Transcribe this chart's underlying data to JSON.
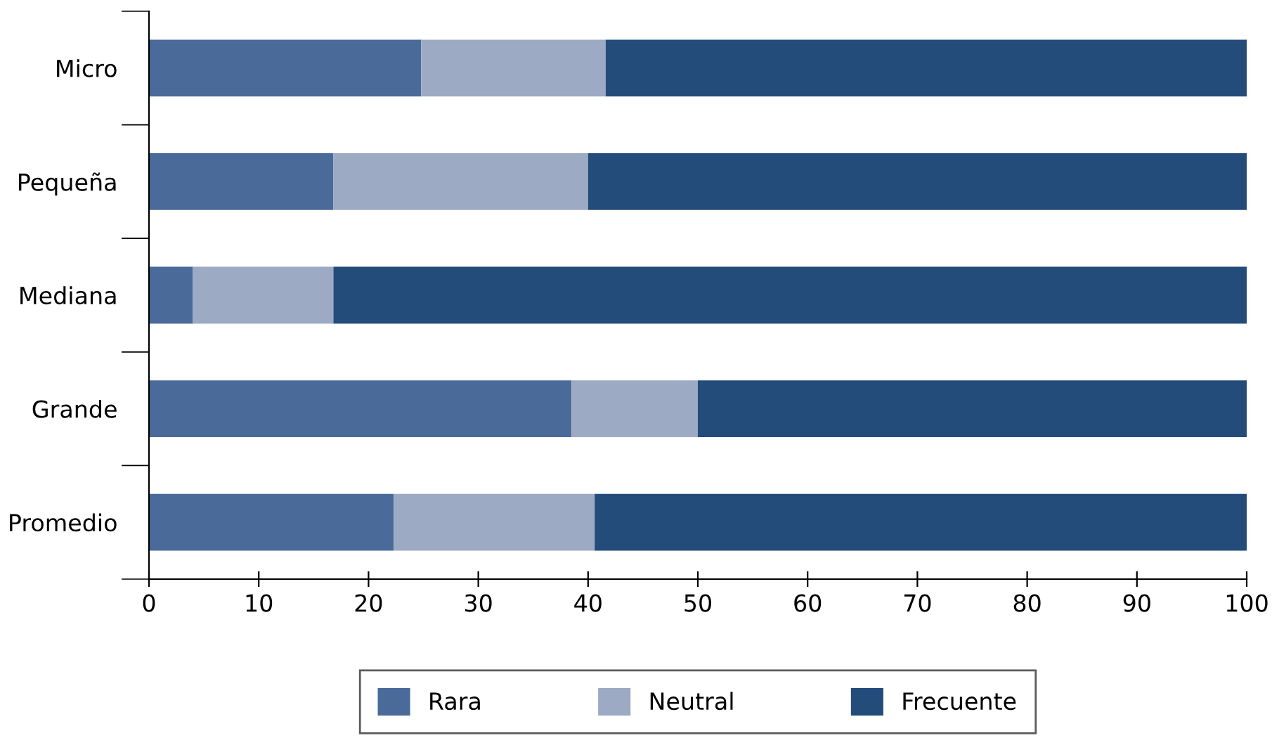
{
  "chart_data": {
    "type": "bar",
    "orientation": "horizontal",
    "stacked": true,
    "categories": [
      "Micro",
      "Pequeña",
      "Mediana",
      "Grande",
      "Promedio"
    ],
    "series": [
      {
        "name": "Rara",
        "color": "#4a6a9a",
        "values": [
          24.8,
          16.8,
          4.0,
          38.5,
          22.3
        ]
      },
      {
        "name": "Neutral",
        "color": "#9caac4",
        "values": [
          16.8,
          23.2,
          12.8,
          11.5,
          18.3
        ]
      },
      {
        "name": "Frecuente",
        "color": "#234c7a",
        "values": [
          58.4,
          60.0,
          83.2,
          50.0,
          59.4
        ]
      }
    ],
    "xlim": [
      0,
      100
    ],
    "xticks": [
      0,
      10,
      20,
      30,
      40,
      50,
      60,
      70,
      80,
      90,
      100
    ],
    "grid": false,
    "legend": "bottom"
  }
}
